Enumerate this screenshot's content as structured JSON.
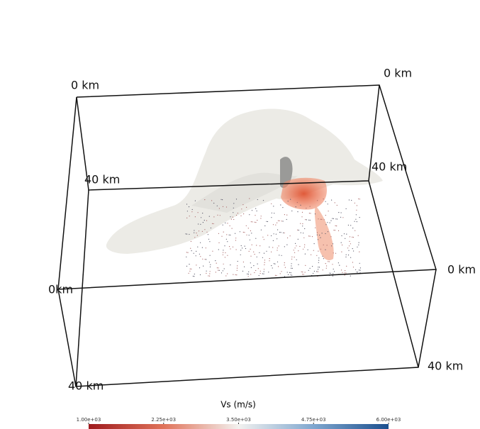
{
  "box_labels": [
    "0 km",
    "0 km",
    "40 km",
    "40 km",
    "0 km",
    "0km",
    "40 km",
    "40 km"
  ],
  "colorbar": {
    "title": "Vs (m/s)",
    "lim": [
      1000,
      6000
    ],
    "ticks": [
      {
        "value": 1000,
        "label": "1.00e+03"
      },
      {
        "value": 2250,
        "label": "2.25e+03"
      },
      {
        "value": 3500,
        "label": "3.50e+03"
      },
      {
        "value": 4750,
        "label": "4.75e+03"
      },
      {
        "value": 6000,
        "label": "6.00e+03"
      }
    ]
  }
}
